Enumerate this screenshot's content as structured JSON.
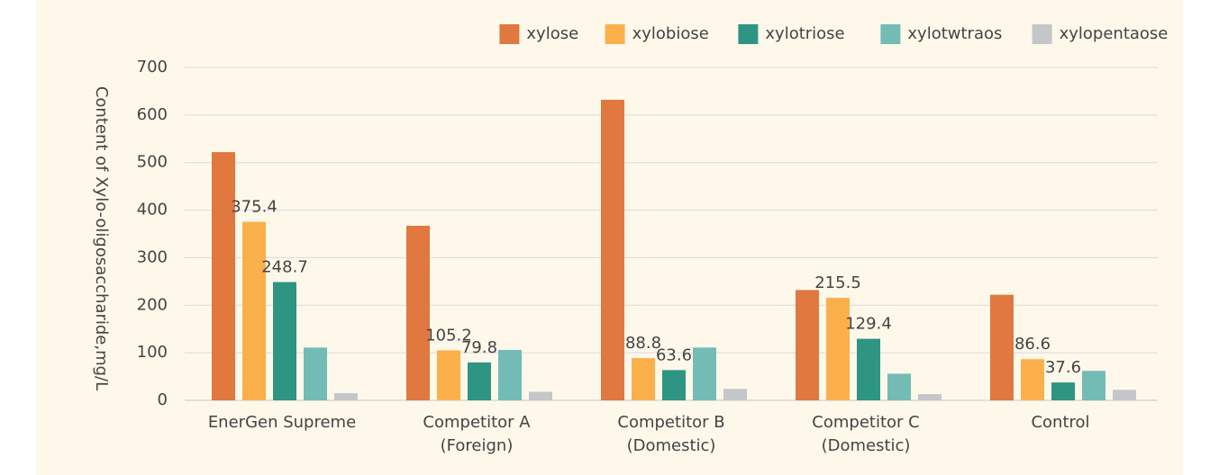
{
  "chart_data": {
    "type": "bar",
    "y_label": "Content of Xylo-oligosaccharide,mg/L",
    "categories": [
      [
        "EnerGen Supreme"
      ],
      [
        "Competitor A",
        "(Foreign)"
      ],
      [
        "Competitor B",
        "(Domestic)"
      ],
      [
        "Competitor C",
        "(Domestic)"
      ],
      [
        "Control"
      ]
    ],
    "series": [
      {
        "name": "xylose",
        "color": "#e07840",
        "values": [
          522,
          367,
          632,
          232,
          222
        ]
      },
      {
        "name": "xylobiose",
        "color": "#fbb04c",
        "values": [
          375.4,
          105.2,
          88.8,
          215.5,
          86.6
        ],
        "labels": true
      },
      {
        "name": "xylotriose",
        "color": "#2e9583",
        "values": [
          248.7,
          79.8,
          63.6,
          129.4,
          37.6
        ],
        "labels": true
      },
      {
        "name": "xylotwtraos",
        "color": "#72bcb5",
        "values": [
          111,
          106,
          111,
          56,
          62
        ]
      },
      {
        "name": "xylopentaose",
        "color": "#c4c6c9",
        "values": [
          15,
          18,
          24,
          13,
          22
        ]
      }
    ],
    "ylim": [
      0,
      700
    ],
    "yticks": [
      0,
      100,
      200,
      300,
      400,
      500,
      600,
      700
    ],
    "grid": true,
    "legend": "top-right"
  }
}
